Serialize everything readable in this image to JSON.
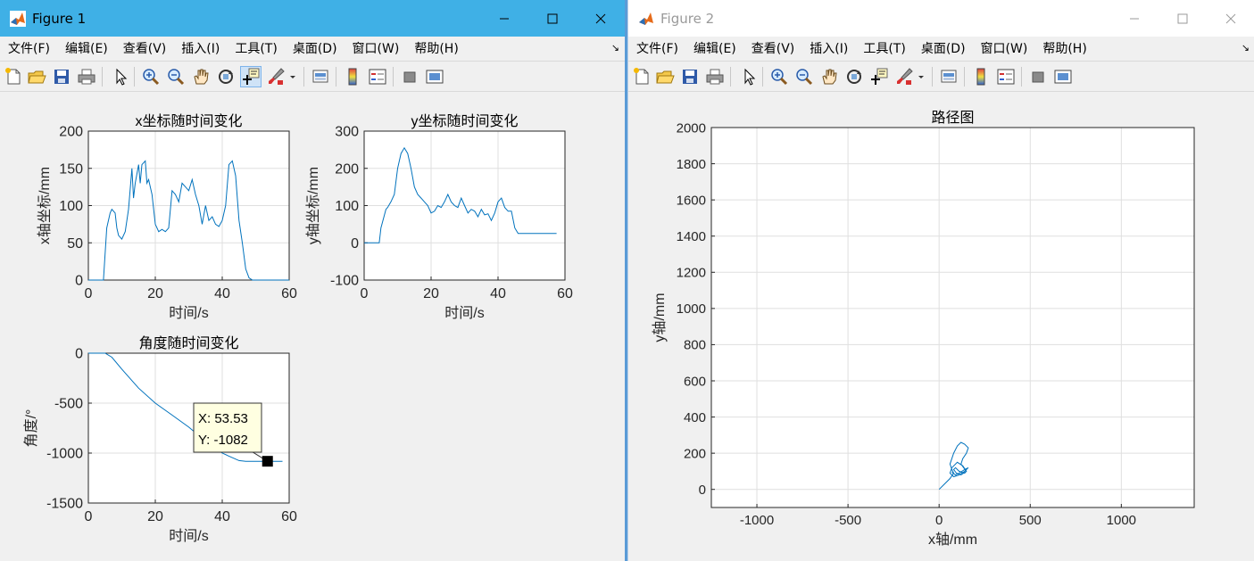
{
  "windows": [
    {
      "title": "Figure 1",
      "menu": [
        "文件(F)",
        "编辑(E)",
        "查看(V)",
        "插入(I)",
        "工具(T)",
        "桌面(D)",
        "窗口(W)",
        "帮助(H)"
      ]
    },
    {
      "title": "Figure 2",
      "menu": [
        "文件(F)",
        "编辑(E)",
        "查看(V)",
        "插入(I)",
        "工具(T)",
        "桌面(D)",
        "窗口(W)",
        "帮助(H)"
      ]
    }
  ],
  "toolbar_icons": [
    "new-figure-icon",
    "open-file-icon",
    "save-icon",
    "print-icon",
    "select-arrow-icon",
    "zoom-in-icon",
    "zoom-out-icon",
    "pan-hand-icon",
    "rotate-3d-icon",
    "data-cursor-icon",
    "brush-icon",
    "brush-dropdown-icon",
    "link-plot-icon",
    "colorbar-icon",
    "legend-icon",
    "hide-plot-tools-icon",
    "show-plot-tools-icon"
  ],
  "datatip": {
    "x_label": "X: 53.53",
    "y_label": "Y: -1082"
  },
  "chart_data": [
    {
      "type": "line",
      "title": "x坐标随时间变化",
      "xlabel": "时间/s",
      "ylabel": "x轴坐标/mm",
      "xlim": [
        0,
        60
      ],
      "ylim": [
        0,
        200
      ],
      "xticks": [
        0,
        20,
        40,
        60
      ],
      "yticks": [
        0,
        50,
        100,
        150,
        200
      ],
      "grid": true,
      "color": "#0072bd",
      "x": [
        0,
        4.5,
        5.5,
        6.5,
        7,
        8,
        8.5,
        9,
        10,
        11,
        12,
        13,
        13.5,
        14,
        15,
        15.5,
        16,
        17,
        17.5,
        18,
        19,
        20,
        21,
        22,
        23,
        24,
        25,
        26,
        27,
        28,
        29,
        30,
        31,
        32,
        33,
        34,
        35,
        36,
        37,
        38,
        39,
        40,
        41,
        42,
        43,
        44,
        45,
        46,
        47,
        48,
        49,
        50,
        60
      ],
      "y": [
        0,
        0,
        70,
        90,
        95,
        90,
        70,
        60,
        55,
        65,
        95,
        150,
        110,
        130,
        155,
        130,
        155,
        160,
        130,
        135,
        115,
        75,
        65,
        68,
        65,
        70,
        120,
        115,
        105,
        130,
        125,
        120,
        135,
        115,
        100,
        75,
        100,
        80,
        85,
        75,
        72,
        80,
        100,
        155,
        160,
        140,
        80,
        50,
        15,
        3,
        0,
        0,
        0
      ]
    },
    {
      "type": "line",
      "title": "y坐标随时间变化",
      "xlabel": "时间/s",
      "ylabel": "y轴坐标/mm",
      "xlim": [
        0,
        60
      ],
      "ylim": [
        -100,
        300
      ],
      "xticks": [
        0,
        20,
        40,
        60
      ],
      "yticks": [
        -100,
        0,
        100,
        200,
        300
      ],
      "grid": true,
      "color": "#0072bd",
      "x": [
        0,
        4.5,
        5,
        6.5,
        7,
        8,
        9,
        10,
        11,
        12,
        13,
        14,
        15,
        16,
        17,
        18,
        19,
        20,
        21,
        22,
        23,
        24,
        25,
        26,
        27,
        28,
        29,
        30,
        31,
        32,
        33,
        34,
        35,
        36,
        37,
        38,
        39,
        40,
        41,
        42,
        43,
        44,
        45,
        46,
        47,
        57.5
      ],
      "y": [
        0,
        0,
        40,
        90,
        95,
        110,
        130,
        200,
        240,
        255,
        240,
        200,
        150,
        130,
        120,
        110,
        100,
        80,
        85,
        100,
        95,
        110,
        130,
        110,
        100,
        95,
        120,
        100,
        80,
        90,
        85,
        70,
        90,
        75,
        78,
        60,
        80,
        110,
        120,
        95,
        85,
        85,
        40,
        25,
        25,
        25
      ]
    },
    {
      "type": "line",
      "title": "角度随时间变化",
      "xlabel": "时间/s",
      "ylabel": "角度/°",
      "xlim": [
        0,
        60
      ],
      "ylim": [
        -1500,
        0
      ],
      "xticks": [
        0,
        20,
        40,
        60
      ],
      "yticks": [
        -1500,
        -1000,
        -500,
        0
      ],
      "grid": true,
      "color": "#0072bd",
      "x": [
        0,
        5,
        7,
        10,
        15,
        20,
        25,
        30,
        35,
        40,
        42,
        45,
        47,
        50,
        53.53,
        58
      ],
      "y": [
        0,
        0,
        -40,
        -160,
        -350,
        -500,
        -620,
        -740,
        -880,
        -1000,
        -1030,
        -1075,
        -1082,
        -1082,
        -1082,
        -1082
      ]
    },
    {
      "type": "line",
      "title": "路径图",
      "xlabel": "x轴/mm",
      "ylabel": "y轴/mm",
      "xlim": [
        -1250,
        1400
      ],
      "ylim": [
        -100,
        2000
      ],
      "xticks": [
        -1000,
        -500,
        0,
        500,
        1000
      ],
      "yticks": [
        0,
        200,
        400,
        600,
        800,
        1000,
        1200,
        1400,
        1600,
        1800,
        2000
      ],
      "grid": true,
      "color": "#0072bd",
      "x": [
        0,
        30,
        60,
        80,
        70,
        60,
        80,
        100,
        120,
        140,
        160,
        150,
        130,
        120,
        135,
        150,
        140,
        110,
        90,
        80,
        95,
        120,
        150,
        130,
        100,
        70,
        60,
        80,
        110,
        140,
        160,
        140,
        110,
        90,
        70
      ],
      "y": [
        0,
        30,
        60,
        90,
        110,
        140,
        200,
        240,
        260,
        250,
        230,
        200,
        170,
        140,
        120,
        100,
        90,
        100,
        120,
        110,
        90,
        80,
        100,
        130,
        150,
        120,
        90,
        70,
        80,
        100,
        120,
        110,
        90,
        80,
        95
      ]
    }
  ]
}
